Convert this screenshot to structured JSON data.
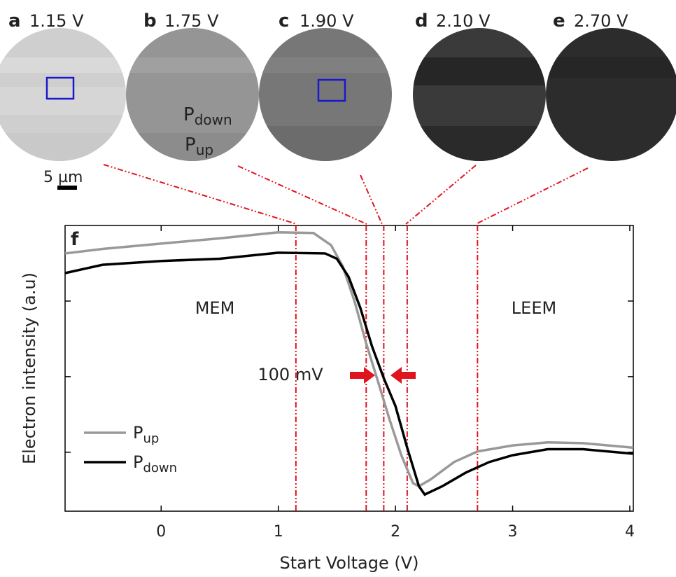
{
  "panels": [
    {
      "letter": "a",
      "label": "1.15 V"
    },
    {
      "letter": "b",
      "label": "1.75 V"
    },
    {
      "letter": "c",
      "label": "1.90 V"
    },
    {
      "letter": "d",
      "label": "2.10 V"
    },
    {
      "letter": "e",
      "label": "2.70 V"
    }
  ],
  "image_annotations": [
    {
      "text": "P",
      "sub": "down"
    },
    {
      "text": "P",
      "sub": "up"
    }
  ],
  "scale_bar": "5 µm",
  "chart_data": {
    "type": "line",
    "panel_letter": "f",
    "xlabel": "Start Voltage (V)",
    "ylabel": "Electron intensity (a.u)",
    "xlim": [
      -0.82,
      4.03
    ],
    "xticks": [
      0,
      1,
      2,
      3,
      4
    ],
    "ylim": [
      -0.78,
      3
    ],
    "yticks": [
      0,
      1,
      2
    ],
    "markers": [
      1.15,
      1.75,
      1.9,
      2.1,
      2.7
    ],
    "marker_color": "#e0141e",
    "annotations": [
      "MEM",
      "LEEM",
      "100 mV"
    ],
    "series": [
      {
        "name": "P",
        "subscript": "up",
        "color": "#999999",
        "x": [
          -0.82,
          -0.5,
          0,
          0.5,
          1.0,
          1.3,
          1.45,
          1.55,
          1.65,
          1.75,
          1.85,
          1.95,
          2.05,
          2.15,
          2.2,
          2.3,
          2.5,
          2.7,
          3.0,
          3.3,
          3.6,
          4.03
        ],
        "values": [
          2.63,
          2.69,
          2.76,
          2.83,
          2.91,
          2.9,
          2.74,
          2.46,
          2.0,
          1.44,
          0.94,
          0.43,
          -0.04,
          -0.41,
          -0.45,
          -0.36,
          -0.13,
          0.01,
          0.09,
          0.13,
          0.12,
          0.06
        ]
      },
      {
        "name": "P",
        "subscript": "down",
        "color": "#000000",
        "x": [
          -0.82,
          -0.5,
          0,
          0.5,
          1.0,
          1.4,
          1.5,
          1.6,
          1.7,
          1.8,
          1.9,
          2.0,
          2.1,
          2.2,
          2.25,
          2.4,
          2.6,
          2.8,
          3.0,
          3.3,
          3.6,
          4.03
        ],
        "values": [
          2.37,
          2.48,
          2.53,
          2.56,
          2.64,
          2.63,
          2.56,
          2.32,
          1.91,
          1.4,
          0.98,
          0.61,
          0.06,
          -0.45,
          -0.56,
          -0.45,
          -0.27,
          -0.13,
          -0.04,
          0.04,
          0.04,
          -0.02
        ]
      }
    ]
  }
}
